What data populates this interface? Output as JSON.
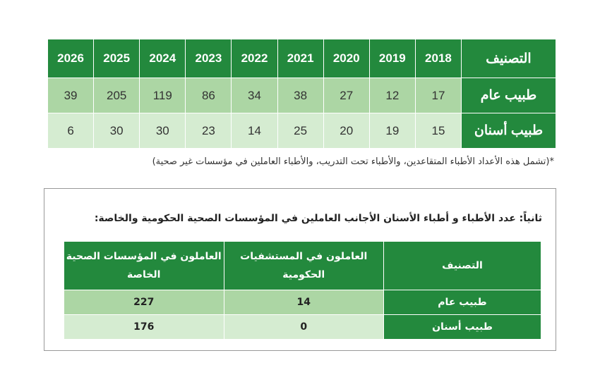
{
  "table1": {
    "header_label": "التصنيف",
    "years": [
      "2018",
      "2019",
      "2020",
      "2021",
      "2022",
      "2023",
      "2024",
      "2025",
      "2026"
    ],
    "rows": [
      {
        "label": "طبيب عام",
        "values": [
          "17",
          "12",
          "27",
          "38",
          "34",
          "86",
          "119",
          "205",
          "39"
        ]
      },
      {
        "label": "طبيب أسنان",
        "values": [
          "15",
          "19",
          "20",
          "25",
          "14",
          "23",
          "30",
          "30",
          "6"
        ]
      }
    ],
    "footnote": "*(تشمل هذه الأعداد الأطباء المتقاعدين، والأطباء تحت التدريب، والأطباء العاملين في مؤسسات غير صحية)"
  },
  "section2": {
    "title": "ثانياً: عدد الأطباء و أطباء الأسنان الأجانب العاملين في المؤسسات الصحية الحكومية والخاصة:",
    "headers": [
      "التصنيف",
      "العاملون في المستشفيات الحكومية",
      "العاملون في المؤسسات الصحية الخاصة"
    ],
    "rows": [
      {
        "label": "طبيب عام",
        "government": "14",
        "private": "227"
      },
      {
        "label": "طبيب أسنان",
        "government": "0",
        "private": "176"
      }
    ]
  },
  "colors": {
    "header": "#23893d",
    "row1": "#acd6a4",
    "row2": "#d5ecd1"
  }
}
